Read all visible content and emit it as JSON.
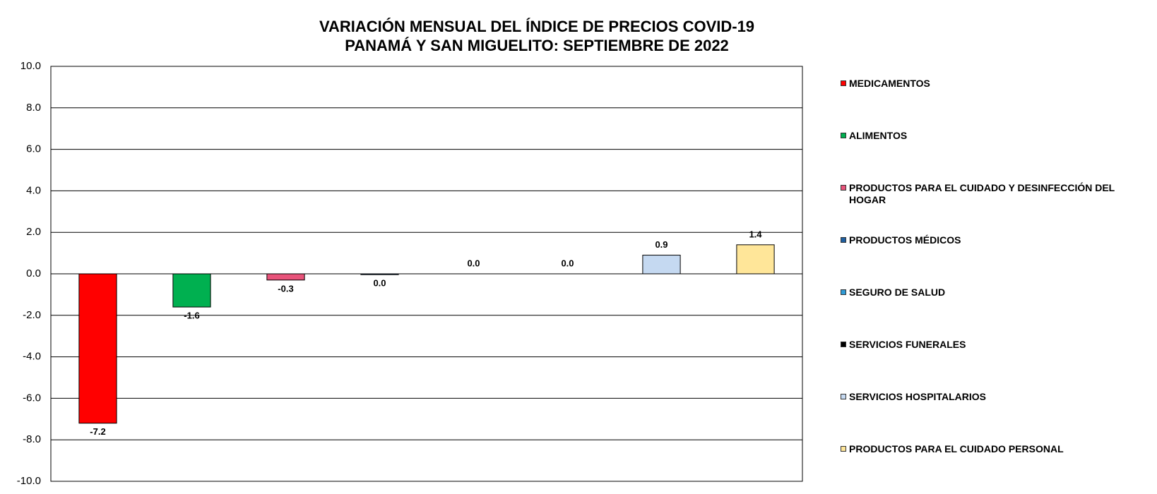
{
  "chart_data": {
    "type": "bar",
    "title": "VARIACIÓN MENSUAL DEL ÍNDICE DE PRECIOS COVID-19",
    "subtitle": "PANAMÁ Y SAN MIGUELITO: SEPTIEMBRE DE 2022",
    "ylim": [
      -10,
      10
    ],
    "yticks": [
      {
        "value": -10,
        "label": "-10.0"
      },
      {
        "value": -8,
        "label": "-8.0"
      },
      {
        "value": -6,
        "label": "-6.0"
      },
      {
        "value": -4,
        "label": "-4.0"
      },
      {
        "value": -2,
        "label": "-2.0"
      },
      {
        "value": 0,
        "label": "0.0"
      },
      {
        "value": 2,
        "label": "2.0"
      },
      {
        "value": 4,
        "label": "4.0"
      },
      {
        "value": 6,
        "label": "6.0"
      },
      {
        "value": 8,
        "label": "8.0"
      },
      {
        "value": 10,
        "label": "10.0"
      }
    ],
    "grid": true,
    "legend": "right",
    "series": [
      {
        "name": "MEDICAMENTOS",
        "color": "#ff0000",
        "values": [
          -7.2
        ]
      },
      {
        "name": "ALIMENTOS",
        "color": "#00b050",
        "values": [
          -1.6
        ]
      },
      {
        "name": "PRODUCTOS PARA EL CUIDADO Y DESINFECCIÓN DEL HOGAR",
        "color": "#e8537a",
        "values": [
          -0.3
        ]
      },
      {
        "name": "PRODUCTOS MÉDICOS",
        "color": "#1f5fa0",
        "values": [
          -0.04
        ],
        "value_labels": [
          "0.0"
        ]
      },
      {
        "name": "SEGURO DE SALUD",
        "color": "#2f9bd6",
        "values": [
          0
        ],
        "value_labels": [
          "0.0"
        ]
      },
      {
        "name": "SERVICIOS FUNERALES",
        "color": "#000000",
        "values": [
          0
        ],
        "value_labels": [
          "0.0"
        ]
      },
      {
        "name": "SERVICIOS HOSPITALARIOS",
        "color": "#c5d9f1",
        "values": [
          0.9
        ]
      },
      {
        "name": "PRODUCTOS PARA EL CUIDADO PERSONAL",
        "color": "#ffe699",
        "values": [
          1.4
        ]
      }
    ]
  }
}
